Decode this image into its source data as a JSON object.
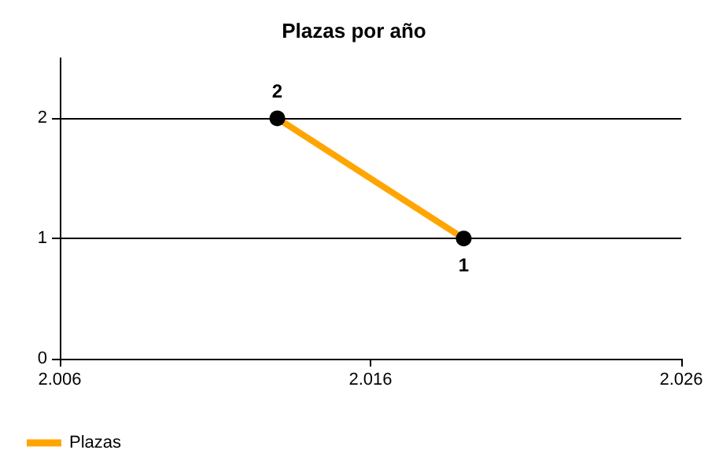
{
  "chart_data": {
    "type": "line",
    "title": "Plazas por año",
    "x": [
      2013,
      2019
    ],
    "series": [
      {
        "name": "Plazas",
        "color": "#ffa500",
        "values": [
          2,
          1
        ]
      }
    ],
    "xlim": [
      2006,
      2026
    ],
    "xticks": [
      {
        "value": 2006,
        "label": "2.006"
      },
      {
        "value": 2016,
        "label": "2.016"
      },
      {
        "value": 2026,
        "label": "2.026"
      }
    ],
    "ylim": [
      0,
      2.5
    ],
    "yticks": [
      0,
      1,
      2
    ],
    "grid": "y",
    "legend": "bottom left",
    "marker": "circle",
    "data_labels": true
  }
}
